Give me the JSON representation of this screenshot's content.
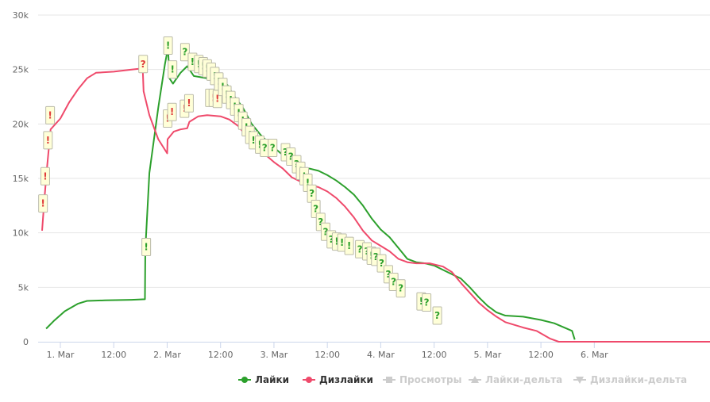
{
  "chart_data": {
    "type": "line",
    "title": "",
    "xlabel": "",
    "ylabel": "",
    "x_unit": "hours since 1. Mar 00:00",
    "xlim": [
      -5,
      146
    ],
    "ylim": [
      0,
      30000
    ],
    "grid": true,
    "legend_position": "bottom-right",
    "x_ticks": [
      {
        "x": 0,
        "label": "1. Mar"
      },
      {
        "x": 12,
        "label": "12:00"
      },
      {
        "x": 24,
        "label": "2. Mar"
      },
      {
        "x": 36,
        "label": "12:00"
      },
      {
        "x": 48,
        "label": "3. Mar"
      },
      {
        "x": 60,
        "label": "12:00"
      },
      {
        "x": 72,
        "label": "4. Mar"
      },
      {
        "x": 84,
        "label": "12:00"
      },
      {
        "x": 96,
        "label": "5. Mar"
      },
      {
        "x": 108,
        "label": "12:00"
      },
      {
        "x": 120,
        "label": "6. Mar"
      }
    ],
    "y_ticks": [
      {
        "y": 0,
        "label": "0"
      },
      {
        "y": 5000,
        "label": "5k"
      },
      {
        "y": 10000,
        "label": "10k"
      },
      {
        "y": 15000,
        "label": "15k"
      },
      {
        "y": 20000,
        "label": "20k"
      },
      {
        "y": 25000,
        "label": "25k"
      },
      {
        "y": 30000,
        "label": "30k"
      }
    ],
    "series": [
      {
        "name": "Лайки",
        "color": "#2ca02c",
        "visible": true,
        "points": [
          [
            -3.2,
            1200
          ],
          [
            -1.5,
            1900
          ],
          [
            1,
            2800
          ],
          [
            4,
            3500
          ],
          [
            6,
            3750
          ],
          [
            10,
            3800
          ],
          [
            16,
            3850
          ],
          [
            19,
            3900
          ],
          [
            19.1,
            8500
          ],
          [
            20,
            15500
          ],
          [
            22,
            21500
          ],
          [
            23.5,
            25500
          ],
          [
            24.2,
            27000
          ],
          [
            24.5,
            24200
          ],
          [
            25.3,
            23700
          ],
          [
            27,
            24700
          ],
          [
            28.5,
            25300
          ],
          [
            30,
            24400
          ],
          [
            33,
            24200
          ],
          [
            36,
            23900
          ],
          [
            37.5,
            23600
          ],
          [
            39,
            22600
          ],
          [
            41,
            21500
          ],
          [
            43,
            20000
          ],
          [
            45,
            19000
          ],
          [
            47,
            18200
          ],
          [
            49,
            17500
          ],
          [
            51,
            16800
          ],
          [
            53,
            16000
          ],
          [
            56,
            15900
          ],
          [
            58,
            15700
          ],
          [
            60,
            15300
          ],
          [
            62,
            14800
          ],
          [
            64,
            14200
          ],
          [
            66,
            13500
          ],
          [
            68,
            12500
          ],
          [
            70,
            11300
          ],
          [
            72,
            10300
          ],
          [
            74,
            9600
          ],
          [
            76,
            8600
          ],
          [
            78,
            7600
          ],
          [
            80,
            7300
          ],
          [
            82,
            7200
          ],
          [
            84,
            7000
          ],
          [
            87,
            6400
          ],
          [
            90,
            5800
          ],
          [
            92,
            5000
          ],
          [
            94,
            4100
          ],
          [
            96,
            3300
          ],
          [
            98,
            2700
          ],
          [
            100,
            2400
          ],
          [
            104,
            2300
          ],
          [
            108,
            2000
          ],
          [
            111,
            1700
          ],
          [
            115,
            1000
          ],
          [
            115.6,
            200
          ]
        ]
      },
      {
        "name": "Дизлайки",
        "color": "#ef4a6b",
        "visible": true,
        "points": [
          [
            -4.1,
            10200
          ],
          [
            -3.6,
            13000
          ],
          [
            -3,
            16000
          ],
          [
            -2.2,
            19500
          ],
          [
            0,
            20500
          ],
          [
            2,
            22000
          ],
          [
            4,
            23200
          ],
          [
            6,
            24200
          ],
          [
            8,
            24700
          ],
          [
            12,
            24800
          ],
          [
            16,
            25000
          ],
          [
            18.5,
            25100
          ],
          [
            18.7,
            23000
          ],
          [
            20,
            20800
          ],
          [
            22,
            18600
          ],
          [
            24,
            17300
          ],
          [
            24.1,
            18600
          ],
          [
            25.5,
            19300
          ],
          [
            27,
            19500
          ],
          [
            28.5,
            19600
          ],
          [
            29,
            20200
          ],
          [
            31,
            20700
          ],
          [
            33,
            20800
          ],
          [
            36,
            20700
          ],
          [
            38,
            20400
          ],
          [
            40,
            19800
          ],
          [
            42,
            18800
          ],
          [
            44,
            17800
          ],
          [
            46,
            17200
          ],
          [
            48,
            16500
          ],
          [
            50,
            15900
          ],
          [
            52,
            15100
          ],
          [
            54,
            14700
          ],
          [
            56,
            14400
          ],
          [
            58,
            14200
          ],
          [
            60,
            13800
          ],
          [
            62,
            13200
          ],
          [
            64,
            12400
          ],
          [
            66,
            11400
          ],
          [
            68,
            10200
          ],
          [
            70,
            9300
          ],
          [
            72,
            8800
          ],
          [
            74,
            8300
          ],
          [
            76,
            7600
          ],
          [
            78,
            7300
          ],
          [
            80,
            7200
          ],
          [
            83,
            7200
          ],
          [
            86,
            6900
          ],
          [
            88,
            6400
          ],
          [
            90,
            5400
          ],
          [
            92,
            4500
          ],
          [
            94,
            3600
          ],
          [
            96,
            2900
          ],
          [
            98,
            2300
          ],
          [
            100,
            1800
          ],
          [
            104,
            1300
          ],
          [
            107,
            1000
          ],
          [
            110,
            300
          ],
          [
            112,
            0
          ],
          [
            146,
            0
          ]
        ]
      },
      {
        "name": "Просмотры",
        "color": "#cccccc",
        "visible": false,
        "points": []
      },
      {
        "name": "Лайки-дельта",
        "color": "#cccccc",
        "visible": false,
        "points": []
      },
      {
        "name": "Дизлайки-дельта",
        "color": "#cccccc",
        "visible": false,
        "points": []
      }
    ],
    "flags": [
      {
        "x": -3.9,
        "y": 12700,
        "text": "!",
        "series": "Дизлайки"
      },
      {
        "x": -3.4,
        "y": 15200,
        "text": "!",
        "series": "Дизлайки"
      },
      {
        "x": -2.8,
        "y": 18500,
        "text": "!",
        "series": "Дизлайки"
      },
      {
        "x": -2.3,
        "y": 20800,
        "text": "!",
        "series": "Дизлайки"
      },
      {
        "x": 18.6,
        "y": 25500,
        "text": "?",
        "series": "Дизлайки"
      },
      {
        "x": 19.3,
        "y": 8700,
        "text": "!",
        "series": "Лайки"
      },
      {
        "x": 24.1,
        "y": 20500,
        "text": "!",
        "series": "Дизлайки"
      },
      {
        "x": 24.2,
        "y": 27200,
        "text": "!",
        "series": "Лайки"
      },
      {
        "x": 25.1,
        "y": 21100,
        "text": "!",
        "series": "Дизлайки"
      },
      {
        "x": 25.2,
        "y": 25000,
        "text": "!",
        "series": "Лайки"
      },
      {
        "x": 27.9,
        "y": 21400,
        "text": "!",
        "series": "Дизлайки"
      },
      {
        "x": 28,
        "y": 26600,
        "text": "?",
        "series": "Лайки"
      },
      {
        "x": 28.9,
        "y": 21900,
        "text": "!",
        "series": "Дизлайки"
      },
      {
        "x": 29.7,
        "y": 25700,
        "text": "!",
        "series": "Лайки"
      },
      {
        "x": 31.1,
        "y": 25500,
        "text": "!",
        "series": "Лайки"
      },
      {
        "x": 32.1,
        "y": 25300,
        "text": "!",
        "series": "Лайки"
      },
      {
        "x": 33,
        "y": 25100,
        "text": "!",
        "series": "Лайки"
      },
      {
        "x": 33.6,
        "y": 22400,
        "text": "!",
        "series": "Дизлайки"
      },
      {
        "x": 33.9,
        "y": 24800,
        "text": "!",
        "series": "Лайки"
      },
      {
        "x": 34.4,
        "y": 22400,
        "text": "!",
        "series": "Дизлайки"
      },
      {
        "x": 34.7,
        "y": 24400,
        "text": "!",
        "series": "Лайки"
      },
      {
        "x": 35.3,
        "y": 22300,
        "text": "!",
        "series": "Дизлайки"
      },
      {
        "x": 35.6,
        "y": 23900,
        "text": "!",
        "series": "Лайки"
      },
      {
        "x": 36.5,
        "y": 23400,
        "text": "!",
        "series": "Лайки"
      },
      {
        "x": 37.4,
        "y": 22700,
        "text": "!",
        "series": "Лайки"
      },
      {
        "x": 38.3,
        "y": 22200,
        "text": "!",
        "series": "Лайки"
      },
      {
        "x": 39.2,
        "y": 21600,
        "text": "!",
        "series": "Лайки"
      },
      {
        "x": 40.1,
        "y": 21000,
        "text": "!",
        "series": "Лайки"
      },
      {
        "x": 41,
        "y": 20300,
        "text": "!",
        "series": "Лайки"
      },
      {
        "x": 41.8,
        "y": 19700,
        "text": "!",
        "series": "Лайки"
      },
      {
        "x": 42.6,
        "y": 19000,
        "text": "!",
        "series": "Лайки"
      },
      {
        "x": 43.4,
        "y": 18500,
        "text": "!",
        "series": "Лайки"
      },
      {
        "x": 44.8,
        "y": 18100,
        "text": "!",
        "series": "Лайки"
      },
      {
        "x": 45.9,
        "y": 17800,
        "text": "?",
        "series": "Лайки"
      },
      {
        "x": 47.7,
        "y": 17800,
        "text": "?",
        "series": "Лайки"
      },
      {
        "x": 50.6,
        "y": 17400,
        "text": "?",
        "series": "Лайки"
      },
      {
        "x": 51.8,
        "y": 17000,
        "text": "?",
        "series": "Лайки"
      },
      {
        "x": 53.1,
        "y": 16300,
        "text": "?",
        "series": "Лайки"
      },
      {
        "x": 54,
        "y": 15700,
        "text": "!",
        "series": "Лайки"
      },
      {
        "x": 54.8,
        "y": 15200,
        "text": "!",
        "series": "Лайки"
      },
      {
        "x": 55.6,
        "y": 14600,
        "text": "!",
        "series": "Лайки"
      },
      {
        "x": 56.5,
        "y": 13600,
        "text": "?",
        "series": "Лайки"
      },
      {
        "x": 57.4,
        "y": 12200,
        "text": "?",
        "series": "Лайки"
      },
      {
        "x": 58.5,
        "y": 11000,
        "text": "?",
        "series": "Лайки"
      },
      {
        "x": 59.6,
        "y": 10100,
        "text": "?",
        "series": "Лайки"
      },
      {
        "x": 60.9,
        "y": 9400,
        "text": "?",
        "series": "Лайки"
      },
      {
        "x": 62.1,
        "y": 9200,
        "text": "!",
        "series": "Лайки"
      },
      {
        "x": 63.3,
        "y": 9100,
        "text": "!",
        "series": "Лайки"
      },
      {
        "x": 64.9,
        "y": 8800,
        "text": "!",
        "series": "Лайки"
      },
      {
        "x": 67.3,
        "y": 8500,
        "text": "?",
        "series": "Лайки"
      },
      {
        "x": 68.9,
        "y": 8300,
        "text": "?",
        "series": "Лайки"
      },
      {
        "x": 69.9,
        "y": 7900,
        "text": "!",
        "series": "Лайки"
      },
      {
        "x": 70.9,
        "y": 7800,
        "text": "?",
        "series": "Лайки"
      },
      {
        "x": 72.2,
        "y": 7200,
        "text": "?",
        "series": "Лайки"
      },
      {
        "x": 73.7,
        "y": 6200,
        "text": "?",
        "series": "Лайки"
      },
      {
        "x": 74.9,
        "y": 5500,
        "text": "?",
        "series": "Лайки"
      },
      {
        "x": 76.5,
        "y": 4900,
        "text": "?",
        "series": "Лайки"
      },
      {
        "x": 81.1,
        "y": 3700,
        "text": "!",
        "series": "Лайки"
      },
      {
        "x": 82.3,
        "y": 3600,
        "text": "?",
        "series": "Лайки"
      },
      {
        "x": 84.7,
        "y": 2400,
        "text": "?",
        "series": "Лайки"
      }
    ]
  }
}
